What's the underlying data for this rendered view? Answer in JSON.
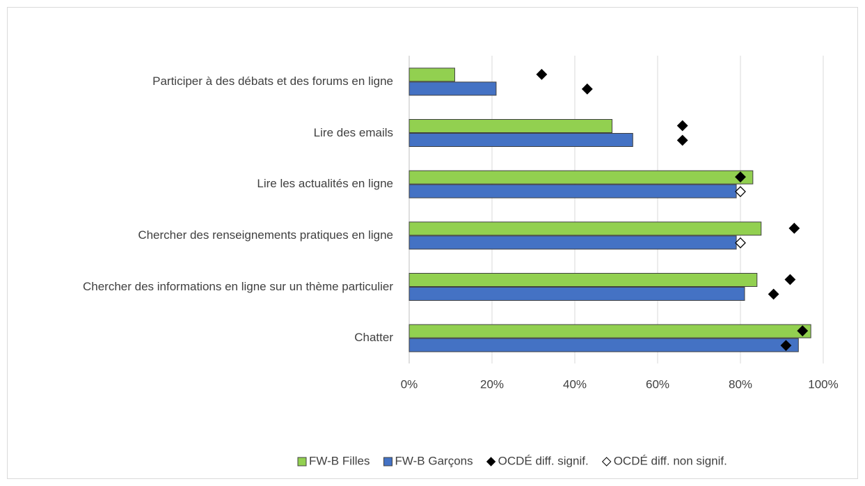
{
  "chart_data": {
    "type": "hbar",
    "categories": [
      "Participer à des débats et des forums en ligne",
      "Lire des emails",
      "Lire les actualités en ligne",
      "Chercher des renseignements pratiques en ligne",
      "Chercher des informations en ligne sur un thème particulier",
      "Chatter"
    ],
    "series": [
      {
        "name": "FW-B Filles",
        "color": "#92d050",
        "values": [
          11,
          49,
          83,
          85,
          84,
          97
        ]
      },
      {
        "name": "FW-B Garçons",
        "color": "#4472c4",
        "values": [
          21,
          54,
          79,
          79,
          81,
          94
        ]
      }
    ],
    "oecd": {
      "filles": [
        32,
        66,
        80,
        93,
        92,
        95
      ],
      "garcons": [
        43,
        66,
        80,
        80,
        88,
        91
      ],
      "significant_filles": [
        true,
        true,
        true,
        true,
        true,
        true
      ],
      "significant_garcons": [
        true,
        true,
        false,
        false,
        true,
        true
      ]
    },
    "marker_legend": [
      "OCDÉ diff.  signif.",
      "OCDÉ diff. non signif."
    ],
    "xlim": [
      0,
      100
    ],
    "xticks": [
      {
        "value": 0,
        "label": "0%"
      },
      {
        "value": 20,
        "label": "20%"
      },
      {
        "value": 40,
        "label": "40%"
      },
      {
        "value": 60,
        "label": "60%"
      },
      {
        "value": 80,
        "label": "80%"
      },
      {
        "value": 100,
        "label": "100%"
      }
    ],
    "grid": true
  }
}
